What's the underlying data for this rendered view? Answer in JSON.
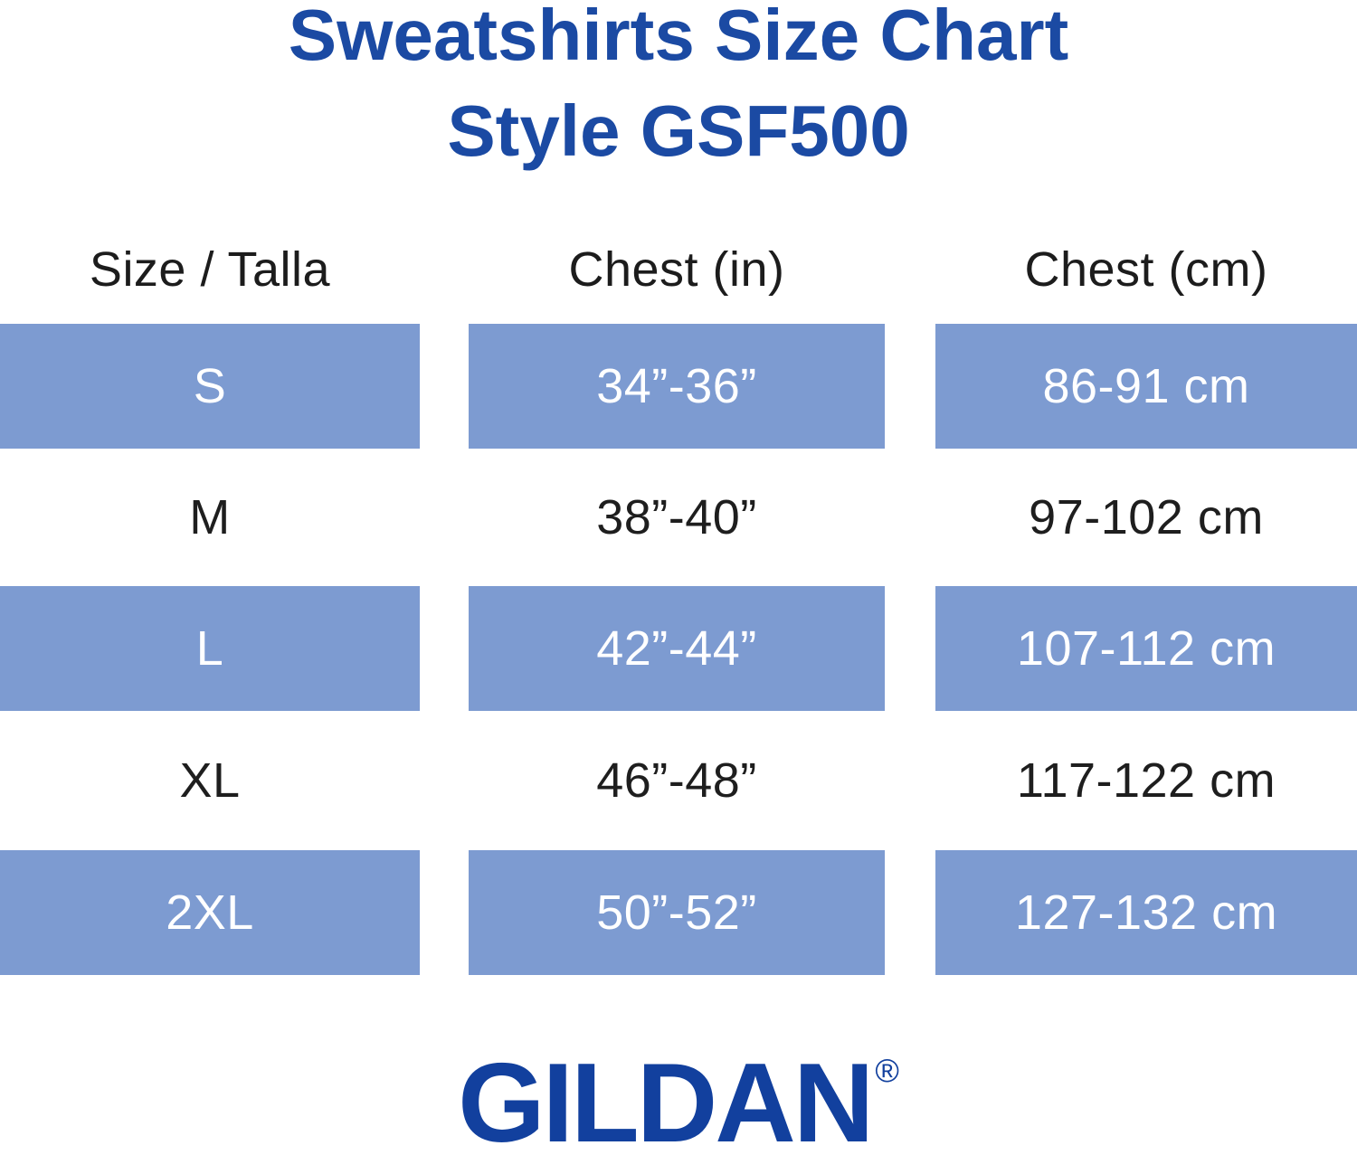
{
  "title": {
    "line1": "Sweatshirts Size Chart",
    "line2": "Style GSF500"
  },
  "table": {
    "columns": [
      "Size / Talla",
      "Chest (in)",
      "Chest (cm)"
    ],
    "rows": [
      {
        "size": "S",
        "chest_in": "34”-36”",
        "chest_cm": "86-91 cm",
        "highlighted": true
      },
      {
        "size": "M",
        "chest_in": "38”-40”",
        "chest_cm": "97-102 cm",
        "highlighted": false
      },
      {
        "size": "L",
        "chest_in": "42”-44”",
        "chest_cm": "107-112 cm",
        "highlighted": true
      },
      {
        "size": "XL",
        "chest_in": "46”-48”",
        "chest_cm": "117-122 cm",
        "highlighted": false
      },
      {
        "size": "2XL",
        "chest_in": "50”-52”",
        "chest_cm": "127-132 cm",
        "highlighted": true
      }
    ]
  },
  "brand": {
    "name": "GILDAN",
    "registered_mark": "®"
  },
  "colors": {
    "title_blue": "#1b4aa3",
    "logo_blue": "#12409e",
    "band_blue": "#7d9bd1",
    "band_text": "#ffffff",
    "dark_text": "#1e1e1e"
  },
  "chart_data": {
    "type": "table",
    "title": "Sweatshirts Size Chart Style GSF500",
    "columns": [
      "Size / Talla",
      "Chest (in)",
      "Chest (cm)"
    ],
    "rows": [
      [
        "S",
        "34”-36”",
        "86-91 cm"
      ],
      [
        "M",
        "38”-40”",
        "97-102 cm"
      ],
      [
        "L",
        "42”-44”",
        "107-112 cm"
      ],
      [
        "XL",
        "46”-48”",
        "117-122 cm"
      ],
      [
        "2XL",
        "50”-52”",
        "127-132 cm"
      ]
    ]
  }
}
